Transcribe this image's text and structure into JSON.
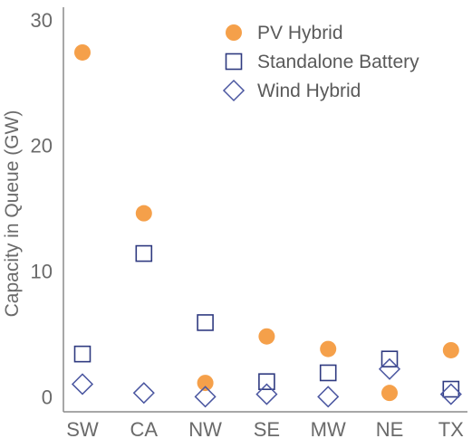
{
  "chart_data": {
    "type": "scatter",
    "categories": [
      "SW",
      "CA",
      "NW",
      "SE",
      "MW",
      "NE",
      "TX"
    ],
    "ylabel": "Capacity in Queue (GW)",
    "ylim": [
      -1.2,
      31
    ],
    "yticks": [
      "0",
      "10",
      "20",
      "30"
    ],
    "legend": {
      "position": "top-right"
    },
    "series": [
      {
        "name": "PV Hybrid",
        "marker": "circle",
        "color": "#f5a04a",
        "values": [
          27.4,
          14.6,
          1.1,
          4.8,
          3.8,
          0.3,
          3.7
        ]
      },
      {
        "name": "Standalone Battery",
        "marker": "square",
        "color": "#2f3a80",
        "values": [
          3.4,
          11.4,
          5.9,
          1.2,
          1.9,
          3.0,
          0.6
        ]
      },
      {
        "name": "Wind Hybrid",
        "marker": "diamond",
        "color": "#4a56a0",
        "values": [
          1.0,
          0.3,
          0.0,
          0.2,
          0.0,
          2.2,
          0.2
        ]
      }
    ]
  }
}
